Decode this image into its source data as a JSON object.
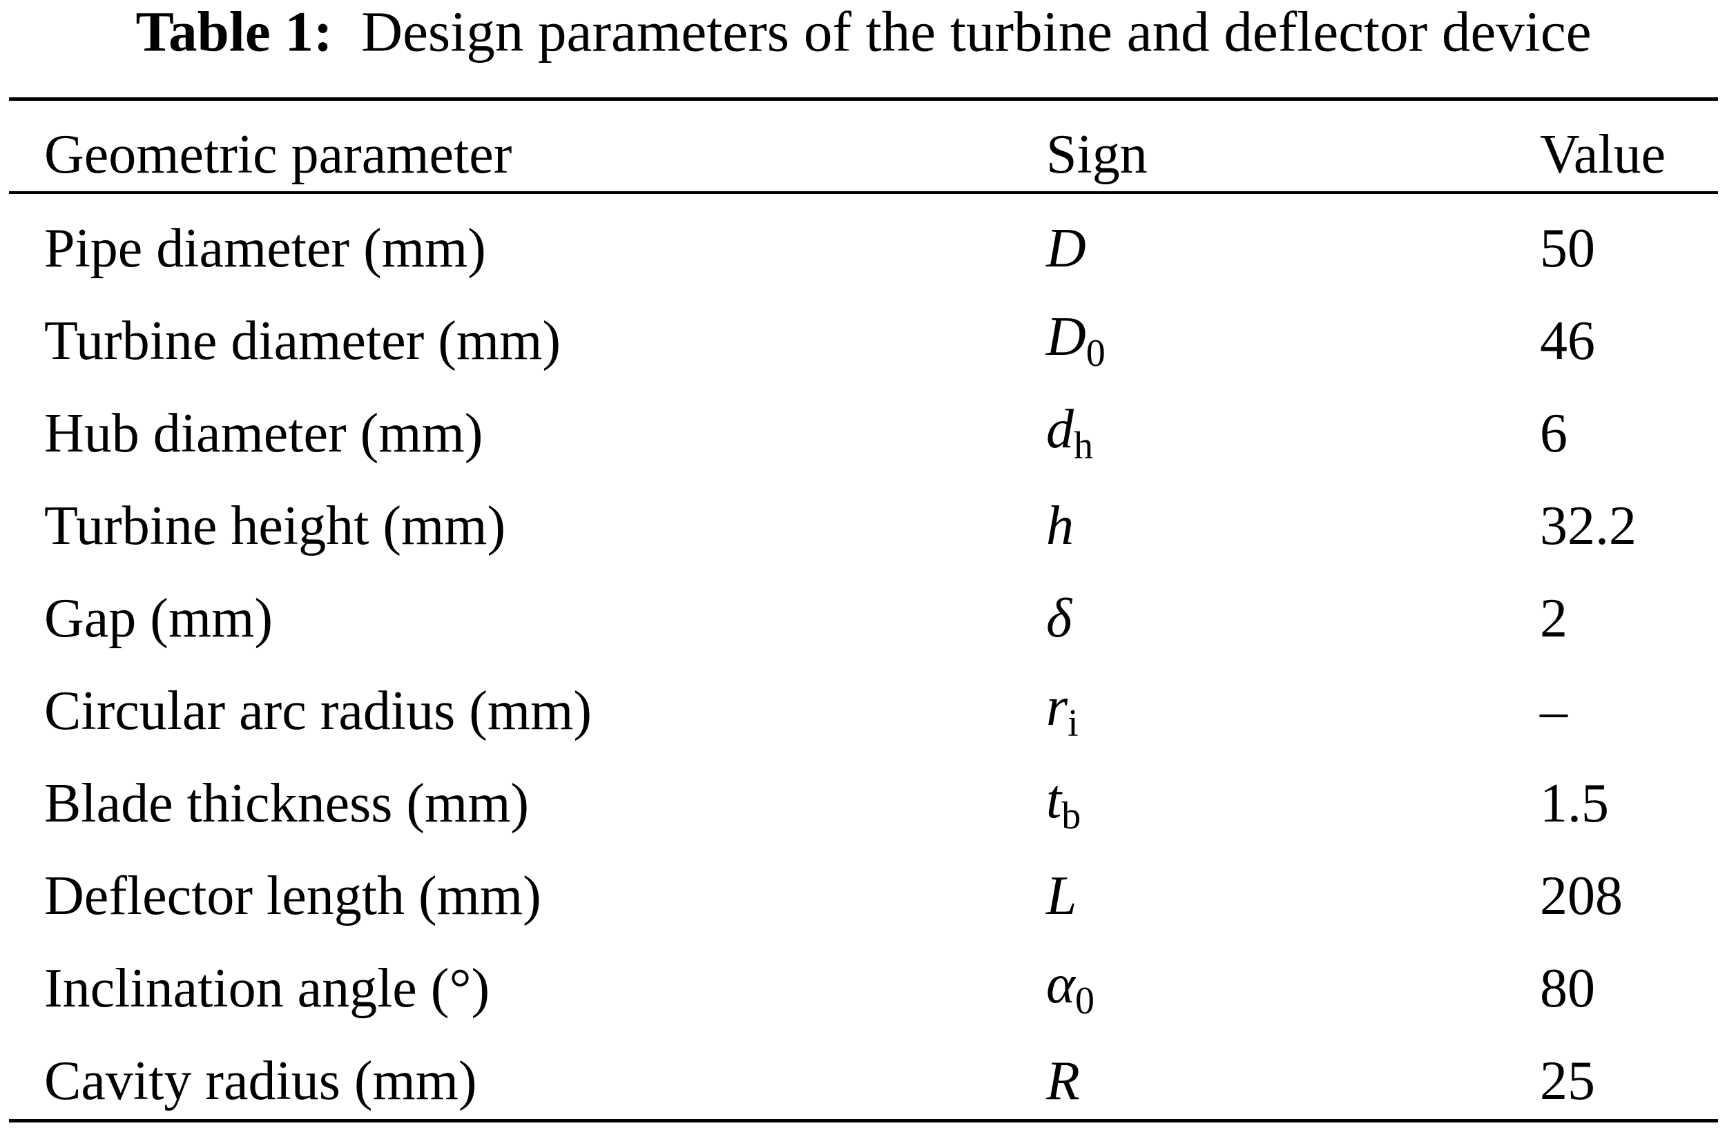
{
  "caption": {
    "label": "Table 1:",
    "text": "Design parameters of the turbine and deflector device"
  },
  "table": {
    "header": [
      "Geometric parameter",
      "Sign",
      "Value"
    ],
    "rows": [
      {
        "parameter": "Pipe diameter (mm)",
        "sign": {
          "base": "D"
        },
        "value": "50"
      },
      {
        "parameter": "Turbine diameter (mm)",
        "sign": {
          "base": "D",
          "sub": "0"
        },
        "value": "46"
      },
      {
        "parameter": "Hub diameter (mm)",
        "sign": {
          "base": "d",
          "sub": "h"
        },
        "value": "6"
      },
      {
        "parameter": "Turbine height (mm)",
        "sign": {
          "base": "h"
        },
        "value": "32.2"
      },
      {
        "parameter": "Gap (mm)",
        "sign": {
          "base": "δ"
        },
        "value": "2"
      },
      {
        "parameter": "Circular arc radius (mm)",
        "sign": {
          "base": "r",
          "sub": "i"
        },
        "value": "–"
      },
      {
        "parameter": "Blade thickness (mm)",
        "sign": {
          "base": "t",
          "sub": "b"
        },
        "value": "1.5"
      },
      {
        "parameter": "Deflector length (mm)",
        "sign": {
          "base": "L"
        },
        "value": "208"
      },
      {
        "parameter": "Inclination angle (°)",
        "sign": {
          "base": "α",
          "sub": "0"
        },
        "value": "80"
      },
      {
        "parameter": "Cavity radius (mm)",
        "sign": {
          "base": "R"
        },
        "value": "25"
      }
    ]
  }
}
